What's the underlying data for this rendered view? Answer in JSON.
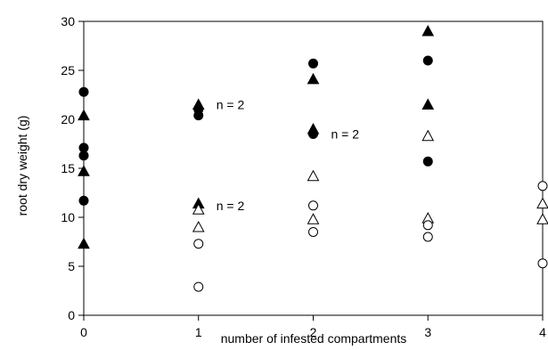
{
  "chart_data": {
    "type": "scatter",
    "title": "",
    "xlabel": "number of infested compartments",
    "ylabel": "root dry weight (g)",
    "xlim": [
      0,
      4
    ],
    "ylim": [
      0,
      30
    ],
    "xticks": [
      "0",
      "1",
      "2",
      "3",
      "4"
    ],
    "yticks": [
      "0",
      "5",
      "10",
      "15",
      "20",
      "25",
      "30"
    ],
    "grid": false,
    "legend": "none",
    "series": [
      {
        "marker": "filled-circle",
        "color": "#000000",
        "points": [
          [
            0,
            22.8
          ],
          [
            0,
            17.1
          ],
          [
            0,
            16.3
          ],
          [
            0,
            11.7
          ],
          [
            1,
            21.0
          ],
          [
            1,
            20.4
          ],
          [
            2,
            25.7
          ],
          [
            2,
            18.5
          ],
          [
            3,
            26.0
          ],
          [
            3,
            15.7
          ]
        ]
      },
      {
        "marker": "filled-triangle",
        "color": "#000000",
        "points": [
          [
            0,
            20.4
          ],
          [
            0,
            14.7
          ],
          [
            0,
            7.3
          ],
          [
            1,
            21.5
          ],
          [
            1,
            11.4
          ],
          [
            2,
            24.1
          ],
          [
            2,
            19.0
          ],
          [
            3,
            29.0
          ],
          [
            3,
            21.5
          ]
        ]
      },
      {
        "marker": "open-triangle",
        "color": "#000000",
        "points": [
          [
            1,
            10.8
          ],
          [
            1,
            9.0
          ],
          [
            2,
            14.2
          ],
          [
            2,
            9.8
          ],
          [
            3,
            18.3
          ],
          [
            3,
            9.9
          ],
          [
            4,
            11.4
          ],
          [
            4,
            9.8
          ]
        ]
      },
      {
        "marker": "open-circle",
        "color": "#000000",
        "points": [
          [
            1,
            7.3
          ],
          [
            1,
            2.9
          ],
          [
            2,
            11.2
          ],
          [
            2,
            8.5
          ],
          [
            3,
            9.2
          ],
          [
            3,
            8.0
          ],
          [
            4,
            13.2
          ],
          [
            4,
            5.3
          ]
        ]
      }
    ],
    "annotations": [
      {
        "text": "n = 2",
        "x": 1,
        "y": 21.5
      },
      {
        "text": "n = 2",
        "x": 2,
        "y": 18.5
      },
      {
        "text": "n = 2",
        "x": 1,
        "y": 11.2
      }
    ]
  }
}
